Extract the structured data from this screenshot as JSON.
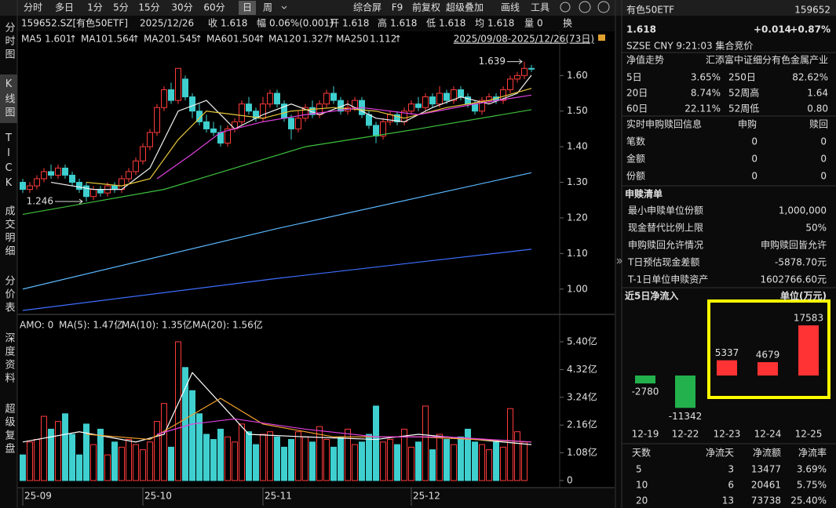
{
  "side_tabs": [
    "分时图",
    "K线图",
    "TICK",
    "成交明细",
    "分价表",
    "深度资料",
    "超级复盘"
  ],
  "toolbar": {
    "periods": [
      "分时",
      "多日",
      "1分",
      "5分",
      "15分",
      "30分",
      "60分",
      "日",
      "周"
    ],
    "tools": [
      "综合屏",
      "F9",
      "前复权",
      "超级叠加",
      "画线",
      "工具"
    ]
  },
  "quote_bar": {
    "symbol": "159652.SZ[有色50ETF]",
    "date": "2025/12/26",
    "fields": [
      {
        "label": "收",
        "value": "1.618"
      },
      {
        "label": "幅",
        "value": "0.06%(0.001)"
      },
      {
        "label": "开",
        "value": "1.618"
      },
      {
        "label": "高",
        "value": "1.618"
      },
      {
        "label": "低",
        "value": "1.618"
      },
      {
        "label": "均",
        "value": "1.618"
      },
      {
        "label": "量",
        "value": "0"
      },
      {
        "label": "换"
      }
    ]
  },
  "price_chart": {
    "type": "candlestick",
    "range": "2025/09/08-2025/12/26(73日)",
    "up_color": "#ff3b3b",
    "down_color": "#3fcfcf",
    "ylim": [
      0.94,
      1.68
    ],
    "yticks": [
      {
        "value": 1.0,
        "label": "1.00"
      },
      {
        "value": 1.1,
        "label": "1.10"
      },
      {
        "value": 1.2,
        "label": "1.20"
      },
      {
        "value": 1.3,
        "label": "1.30"
      },
      {
        "value": 1.4,
        "label": "1.40"
      },
      {
        "value": 1.5,
        "label": "1.50"
      },
      {
        "value": 1.6,
        "label": "1.60"
      }
    ],
    "xticks": [
      {
        "value": 0,
        "label": "25-09"
      },
      {
        "value": 17,
        "label": "25-10"
      },
      {
        "value": 34,
        "label": "25-11"
      },
      {
        "value": 55,
        "label": "25-12"
      }
    ],
    "high_mark": 1.639,
    "low_mark": 1.246,
    "candles": [
      [
        1.3,
        1.31,
        1.27,
        1.28
      ],
      [
        1.28,
        1.3,
        1.27,
        1.29
      ],
      [
        1.29,
        1.32,
        1.28,
        1.31
      ],
      [
        1.31,
        1.34,
        1.3,
        1.33
      ],
      [
        1.33,
        1.35,
        1.31,
        1.32
      ],
      [
        1.32,
        1.35,
        1.31,
        1.34
      ],
      [
        1.34,
        1.35,
        1.31,
        1.32
      ],
      [
        1.32,
        1.33,
        1.29,
        1.3
      ],
      [
        1.3,
        1.31,
        1.27,
        1.28
      ],
      [
        1.29,
        1.3,
        1.246,
        1.26
      ],
      [
        1.26,
        1.29,
        1.25,
        1.28
      ],
      [
        1.28,
        1.29,
        1.26,
        1.27
      ],
      [
        1.27,
        1.3,
        1.26,
        1.29
      ],
      [
        1.29,
        1.3,
        1.27,
        1.28
      ],
      [
        1.28,
        1.32,
        1.27,
        1.31
      ],
      [
        1.31,
        1.34,
        1.3,
        1.33
      ],
      [
        1.33,
        1.37,
        1.32,
        1.36
      ],
      [
        1.36,
        1.41,
        1.35,
        1.4
      ],
      [
        1.4,
        1.45,
        1.39,
        1.44
      ],
      [
        1.44,
        1.52,
        1.43,
        1.51
      ],
      [
        1.51,
        1.57,
        1.5,
        1.56
      ],
      [
        1.56,
        1.58,
        1.52,
        1.53
      ],
      [
        1.53,
        1.62,
        1.52,
        1.62
      ],
      [
        1.59,
        1.6,
        1.53,
        1.54
      ],
      [
        1.54,
        1.55,
        1.48,
        1.5
      ],
      [
        1.5,
        1.52,
        1.46,
        1.47
      ],
      [
        1.47,
        1.49,
        1.44,
        1.45
      ],
      [
        1.45,
        1.47,
        1.43,
        1.44
      ],
      [
        1.44,
        1.46,
        1.4,
        1.41
      ],
      [
        1.41,
        1.46,
        1.4,
        1.45
      ],
      [
        1.45,
        1.48,
        1.44,
        1.47
      ],
      [
        1.47,
        1.53,
        1.46,
        1.52
      ],
      [
        1.52,
        1.54,
        1.49,
        1.5
      ],
      [
        1.5,
        1.51,
        1.47,
        1.48
      ],
      [
        1.48,
        1.54,
        1.47,
        1.52
      ],
      [
        1.52,
        1.56,
        1.51,
        1.55
      ],
      [
        1.55,
        1.56,
        1.51,
        1.52
      ],
      [
        1.52,
        1.53,
        1.47,
        1.48
      ],
      [
        1.48,
        1.49,
        1.42,
        1.45
      ],
      [
        1.45,
        1.5,
        1.44,
        1.48
      ],
      [
        1.48,
        1.52,
        1.47,
        1.51
      ],
      [
        1.51,
        1.53,
        1.48,
        1.49
      ],
      [
        1.49,
        1.53,
        1.48,
        1.52
      ],
      [
        1.52,
        1.56,
        1.51,
        1.55
      ],
      [
        1.55,
        1.57,
        1.52,
        1.53
      ],
      [
        1.53,
        1.54,
        1.49,
        1.5
      ],
      [
        1.5,
        1.53,
        1.49,
        1.51
      ],
      [
        1.51,
        1.54,
        1.5,
        1.53
      ],
      [
        1.53,
        1.54,
        1.48,
        1.49
      ],
      [
        1.49,
        1.5,
        1.45,
        1.46
      ],
      [
        1.46,
        1.47,
        1.41,
        1.43
      ],
      [
        1.43,
        1.48,
        1.42,
        1.47
      ],
      [
        1.47,
        1.5,
        1.46,
        1.49
      ],
      [
        1.49,
        1.5,
        1.46,
        1.47
      ],
      [
        1.47,
        1.51,
        1.46,
        1.5
      ],
      [
        1.5,
        1.53,
        1.49,
        1.52
      ],
      [
        1.52,
        1.54,
        1.5,
        1.51
      ],
      [
        1.51,
        1.55,
        1.5,
        1.54
      ],
      [
        1.54,
        1.55,
        1.51,
        1.52
      ],
      [
        1.52,
        1.57,
        1.51,
        1.55
      ],
      [
        1.55,
        1.56,
        1.52,
        1.53
      ],
      [
        1.53,
        1.57,
        1.52,
        1.56
      ],
      [
        1.56,
        1.57,
        1.53,
        1.54
      ],
      [
        1.54,
        1.55,
        1.51,
        1.52
      ],
      [
        1.52,
        1.53,
        1.49,
        1.5
      ],
      [
        1.5,
        1.54,
        1.49,
        1.53
      ],
      [
        1.53,
        1.55,
        1.52,
        1.54
      ],
      [
        1.54,
        1.55,
        1.52,
        1.53
      ],
      [
        1.53,
        1.57,
        1.52,
        1.56
      ],
      [
        1.56,
        1.6,
        1.55,
        1.59
      ],
      [
        1.59,
        1.61,
        1.58,
        1.6
      ],
      [
        1.6,
        1.639,
        1.59,
        1.62
      ],
      [
        1.62,
        1.63,
        1.61,
        1.618
      ]
    ],
    "ma": [
      {
        "name": "MA5",
        "last": "1.601",
        "trend": "↑",
        "color": "#f2f2f2",
        "x": [
          4,
          10,
          14,
          18,
          22,
          26,
          30,
          34,
          38,
          42,
          46,
          50,
          54,
          58,
          62,
          66,
          70,
          72
        ],
        "values": [
          1.3,
          1.28,
          1.28,
          1.34,
          1.5,
          1.53,
          1.45,
          1.49,
          1.52,
          1.49,
          1.52,
          1.48,
          1.47,
          1.51,
          1.54,
          1.52,
          1.55,
          1.601
        ]
      },
      {
        "name": "MA10",
        "last": "1.564",
        "trend": "↑",
        "color": "#e8c83a",
        "x": [
          9,
          14,
          18,
          22,
          26,
          30,
          34,
          38,
          44,
          50,
          54,
          60,
          66,
          72
        ],
        "values": [
          1.3,
          1.29,
          1.31,
          1.42,
          1.5,
          1.49,
          1.48,
          1.5,
          1.51,
          1.5,
          1.48,
          1.51,
          1.53,
          1.564
        ]
      },
      {
        "name": "MA20",
        "last": "1.545",
        "trend": "↑",
        "color": "#e040e0",
        "x": [
          19,
          24,
          28,
          34,
          40,
          48,
          56,
          64,
          72
        ],
        "values": [
          1.31,
          1.38,
          1.44,
          1.47,
          1.49,
          1.51,
          1.49,
          1.52,
          1.545
        ]
      },
      {
        "name": "MA60",
        "last": "1.504",
        "trend": "↑",
        "color": "#3ec13e",
        "x": [
          0,
          20,
          40,
          56,
          72
        ],
        "values": [
          1.21,
          1.28,
          1.4,
          1.45,
          1.504
        ]
      },
      {
        "name": "MA120",
        "last": "1.327",
        "trend": "↑",
        "color": "#5ab8ff",
        "x": [
          0,
          36,
          72
        ],
        "values": [
          1.0,
          1.17,
          1.327
        ]
      },
      {
        "name": "MA250",
        "last": "1.112",
        "trend": "↑",
        "color": "#3d6fff",
        "x": [
          0,
          36,
          72
        ],
        "values": [
          0.94,
          1.03,
          1.112
        ]
      }
    ]
  },
  "volume_chart": {
    "type": "bar",
    "legend": [
      {
        "text": "AMO: 0",
        "color": "#ffffff"
      },
      {
        "text": "MA(5): 1.47亿",
        "color": "#ffffff"
      },
      {
        "text": "MA(10): 1.35亿",
        "color": "#f0a030"
      },
      {
        "text": "MA(20): 1.56亿",
        "color": "#e040e0"
      }
    ],
    "ylim": [
      0,
      5.4
    ],
    "yticks": [
      {
        "value": 0,
        "label": "0"
      },
      {
        "value": 1.08,
        "label": "1.08亿"
      },
      {
        "value": 2.16,
        "label": "2.16亿"
      },
      {
        "value": 3.24,
        "label": "3.24亿"
      },
      {
        "value": 4.32,
        "label": "4.32亿"
      },
      {
        "value": 5.4,
        "label": "5.40亿"
      }
    ],
    "values": [
      1.0,
      1.5,
      1.6,
      2.5,
      2.0,
      2.3,
      2.6,
      1.8,
      1.0,
      2.2,
      1.4,
      2.0,
      1.0,
      1.5,
      1.3,
      1.6,
      1.4,
      1.2,
      1.5,
      2.3,
      3.0,
      1.3,
      5.4,
      4.4,
      3.5,
      2.6,
      1.8,
      1.6,
      2.0,
      1.7,
      1.5,
      2.2,
      1.9,
      1.4,
      1.8,
      1.9,
      1.7,
      1.3,
      1.6,
      1.9,
      1.7,
      1.5,
      2.1,
      1.6,
      1.3,
      1.7,
      2.0,
      1.4,
      1.5,
      1.8,
      2.9,
      1.5,
      1.6,
      1.4,
      2.0,
      1.3,
      1.5,
      2.9,
      1.2,
      1.8,
      1.6,
      1.4,
      1.7,
      2.0,
      1.5,
      1.4,
      1.2,
      1.5,
      1.3,
      2.8,
      1.9,
      1.5,
      0
    ],
    "ma": [
      {
        "color": "#ffffff",
        "x": [
          0,
          8,
          16,
          20,
          24,
          28,
          32,
          40,
          50,
          56,
          64,
          72
        ],
        "values": [
          1.5,
          1.9,
          1.5,
          1.8,
          4.2,
          3.0,
          1.8,
          1.7,
          1.6,
          1.8,
          1.6,
          1.4
        ]
      },
      {
        "color": "#f0a030",
        "x": [
          9,
          18,
          23,
          28,
          34,
          44,
          56,
          72
        ],
        "values": [
          1.8,
          1.6,
          2.4,
          3.2,
          2.2,
          1.7,
          1.7,
          1.5
        ]
      },
      {
        "color": "#e040e0",
        "x": [
          19,
          24,
          30,
          40,
          50,
          60,
          72
        ],
        "values": [
          1.8,
          2.2,
          2.4,
          2.0,
          1.7,
          1.7,
          1.5
        ]
      }
    ]
  },
  "sidebar": {
    "name": "有色50ETF",
    "code": "159652",
    "price": "1.618",
    "change": "+0.014",
    "change_pct": "+0.87%",
    "exchange_line": "SZSE  CNY  9:21:03  集合竞价",
    "nav_title": "净值走势",
    "index_name": "汇添富中证细分有色金属产业",
    "returns": [
      [
        "5日",
        "3.65%",
        "250日",
        "82.62%"
      ],
      [
        "20日",
        "8.74%",
        "52周高",
        "1.64"
      ],
      [
        "60日",
        "22.11%",
        "52周低",
        "0.80"
      ]
    ],
    "realtime": {
      "title": "实时申购赎回信息",
      "headers": [
        "申购",
        "赎回"
      ],
      "rows": [
        [
          "笔数",
          "0",
          "0"
        ],
        [
          "金额",
          "0",
          "0"
        ],
        [
          "份额",
          "0",
          "0"
        ]
      ]
    },
    "list": {
      "title": "申赎清单",
      "rows": [
        [
          "最小申赎单位份额",
          "1,000,000"
        ],
        [
          "现金替代比例上限",
          "50%"
        ],
        [
          "申购赎回允许情况",
          "申购赎回皆允许"
        ],
        [
          "T日预估现金差额",
          "-5878.70元"
        ],
        [
          "T-1日单位申赎资产",
          "1602766.60元"
        ]
      ]
    },
    "net_inflow": {
      "type": "bar",
      "title": "近5日净流入",
      "unit": "单位(万元)",
      "categories": [
        "12-19",
        "12-22",
        "12-23",
        "12-24",
        "12-25"
      ],
      "values": [
        -2780,
        -11342,
        5337,
        4679,
        17583
      ],
      "table": {
        "headers": [
          "天数",
          "净流天",
          "净流额",
          "净流率"
        ],
        "rows": [
          [
            "5",
            "3",
            "13477",
            "3.69%"
          ],
          [
            "10",
            "6",
            "20461",
            "5.75%"
          ],
          [
            "20",
            "13",
            "73738",
            "25.40%"
          ]
        ]
      }
    }
  }
}
